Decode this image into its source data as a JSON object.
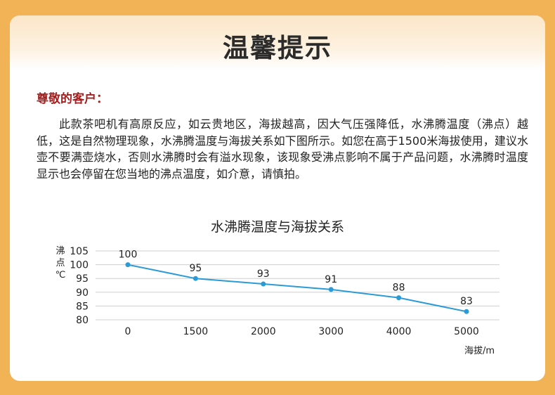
{
  "header": {
    "title": "温馨提示"
  },
  "notice": {
    "greeting": "尊敬的客户：",
    "body": "此款茶吧机有高原反应，如云贵地区，海拔越高，因大气压强降低，水沸腾温度（沸点）越低，这是自然物理现象，水沸腾温度与海拔关系如下图所示。如您在高于1500米海拔使用，建议水壶不要满壶烧水，否则水沸腾时会有溢水现象，该现象受沸点影响不属于产品问题，水沸腾时温度显示也会停留在您当地的沸点温度，如介意，请慎拍。"
  },
  "colors": {
    "background": "#f2b356",
    "line": "#2b9bd8",
    "greeting": "#a32020"
  },
  "chart_data": {
    "type": "line",
    "title": "水沸腾温度与海拔关系",
    "ylabel": "沸点℃",
    "xlabel": "海拔/m",
    "x": [
      "0",
      "1500",
      "2000",
      "3000",
      "4000",
      "5000"
    ],
    "series": [
      {
        "values": [
          100,
          95,
          93,
          91,
          88,
          83
        ]
      }
    ],
    "ylim": [
      80,
      105
    ],
    "yticks": [
      105,
      100,
      95,
      90,
      85,
      80
    ],
    "grid": true
  }
}
